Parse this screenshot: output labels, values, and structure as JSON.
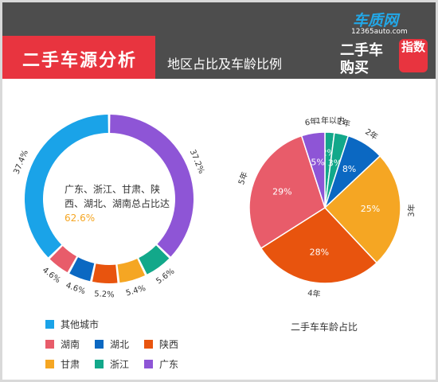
{
  "header": {
    "title": "二手车源分析",
    "subtitle": "地区占比及车龄比例"
  },
  "logo": {
    "brand": "车质网",
    "domain": "12365auto.com",
    "line1": "二手车",
    "line2": "购买",
    "seal": "指数"
  },
  "colors": {
    "header_bg": "#4d4d4d",
    "title_bg": "#e8343f",
    "accent": "#f5a623"
  },
  "chart_data": [
    {
      "type": "donut",
      "caption": "",
      "center_text": "广东、浙江、甘肃、陕西、湖北、湖南总占比达",
      "center_value": "62.6%",
      "segments": [
        {
          "name": "广东",
          "value": 37.2,
          "label": "37.2%",
          "color": "#8e55d6"
        },
        {
          "name": "浙江",
          "value": 5.6,
          "label": "5.6%",
          "color": "#12a88a"
        },
        {
          "name": "甘肃",
          "value": 5.4,
          "label": "5.4%",
          "color": "#f5a623"
        },
        {
          "name": "陕西",
          "value": 5.2,
          "label": "5.2%",
          "color": "#e8540e"
        },
        {
          "name": "湖北",
          "value": 4.6,
          "label": "4.6%",
          "color": "#0b68c2"
        },
        {
          "name": "湖南",
          "value": 4.6,
          "label": "4.6%",
          "color": "#e85c6a"
        },
        {
          "name": "其他城市",
          "value": 37.4,
          "label": "37.4%",
          "color": "#1aa3e8"
        }
      ],
      "legend": [
        "其他城市",
        "湖南",
        "湖北",
        "陕西",
        "甘肃",
        "浙江",
        "广东"
      ]
    },
    {
      "type": "pie",
      "caption": "二手车车龄占比",
      "slices": [
        {
          "name": "1年以内",
          "value": 2,
          "label": "2%",
          "color": "#12a88a"
        },
        {
          "name": "1年",
          "value": 3,
          "label": "3%",
          "color": "#12a88a"
        },
        {
          "name": "2年",
          "value": 8,
          "label": "8%",
          "color": "#0b68c2"
        },
        {
          "name": "3年",
          "value": 25,
          "label": "25%",
          "color": "#f5a623"
        },
        {
          "name": "4年",
          "value": 28,
          "label": "28%",
          "color": "#e8540e"
        },
        {
          "name": "5年",
          "value": 29,
          "label": "29%",
          "color": "#e85c6a"
        },
        {
          "name": "6年",
          "value": 5,
          "label": "5%",
          "color": "#8e55d6"
        }
      ]
    }
  ]
}
